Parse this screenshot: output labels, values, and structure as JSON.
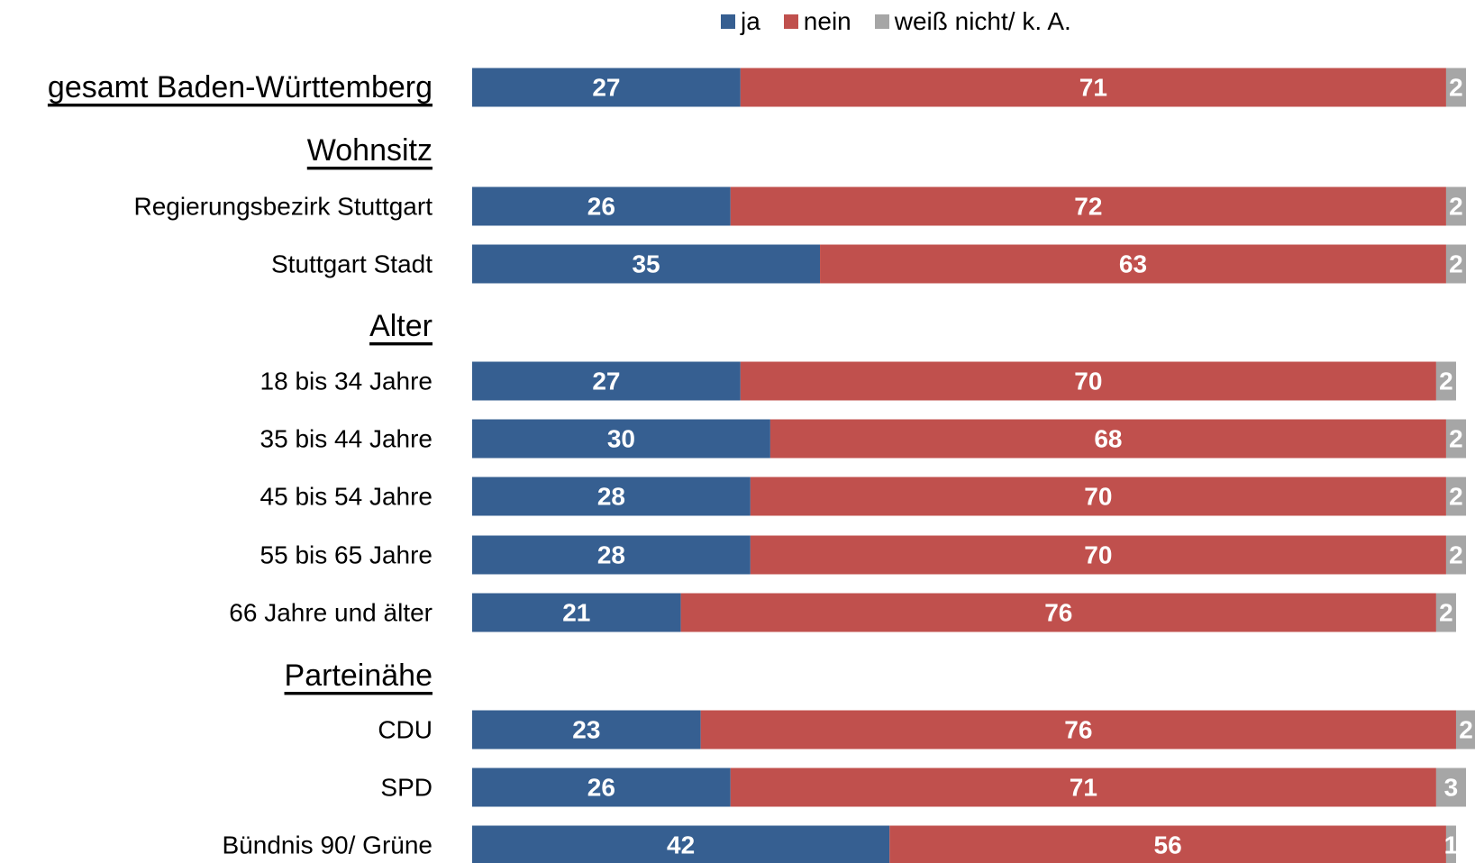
{
  "chart_data": {
    "type": "bar",
    "orientation": "horizontal",
    "stacked": true,
    "legend_position": "top",
    "series": [
      {
        "name": "ja",
        "color": "#365F91"
      },
      {
        "name": "nein",
        "color": "#C0504D"
      },
      {
        "name": "weiß nicht/ k. A.",
        "color": "#A6A6A6"
      }
    ],
    "rows": [
      {
        "label": "gesamt Baden-Württemberg",
        "kind": "total",
        "values": [
          27,
          71,
          2
        ]
      },
      {
        "label": "Wohnsitz",
        "kind": "header"
      },
      {
        "label": "Regierungsbezirk Stuttgart",
        "kind": "bar",
        "values": [
          26,
          72,
          2
        ]
      },
      {
        "label": "Stuttgart Stadt",
        "kind": "bar",
        "values": [
          35,
          63,
          2
        ]
      },
      {
        "label": "Alter",
        "kind": "header"
      },
      {
        "label": "18 bis 34 Jahre",
        "kind": "bar",
        "values": [
          27,
          70,
          2
        ]
      },
      {
        "label": "35 bis 44 Jahre",
        "kind": "bar",
        "values": [
          30,
          68,
          2
        ]
      },
      {
        "label": "45 bis 54 Jahre",
        "kind": "bar",
        "values": [
          28,
          70,
          2
        ]
      },
      {
        "label": "55 bis 65 Jahre",
        "kind": "bar",
        "values": [
          28,
          70,
          2
        ]
      },
      {
        "label": "66 Jahre und älter",
        "kind": "bar",
        "values": [
          21,
          76,
          2
        ]
      },
      {
        "label": "Parteinähe",
        "kind": "header"
      },
      {
        "label": "CDU",
        "kind": "bar",
        "values": [
          23,
          76,
          2
        ]
      },
      {
        "label": "SPD",
        "kind": "bar",
        "values": [
          26,
          71,
          3
        ]
      },
      {
        "label": "Bündnis 90/ Grüne",
        "kind": "bar",
        "values": [
          42,
          56,
          1
        ]
      }
    ]
  }
}
